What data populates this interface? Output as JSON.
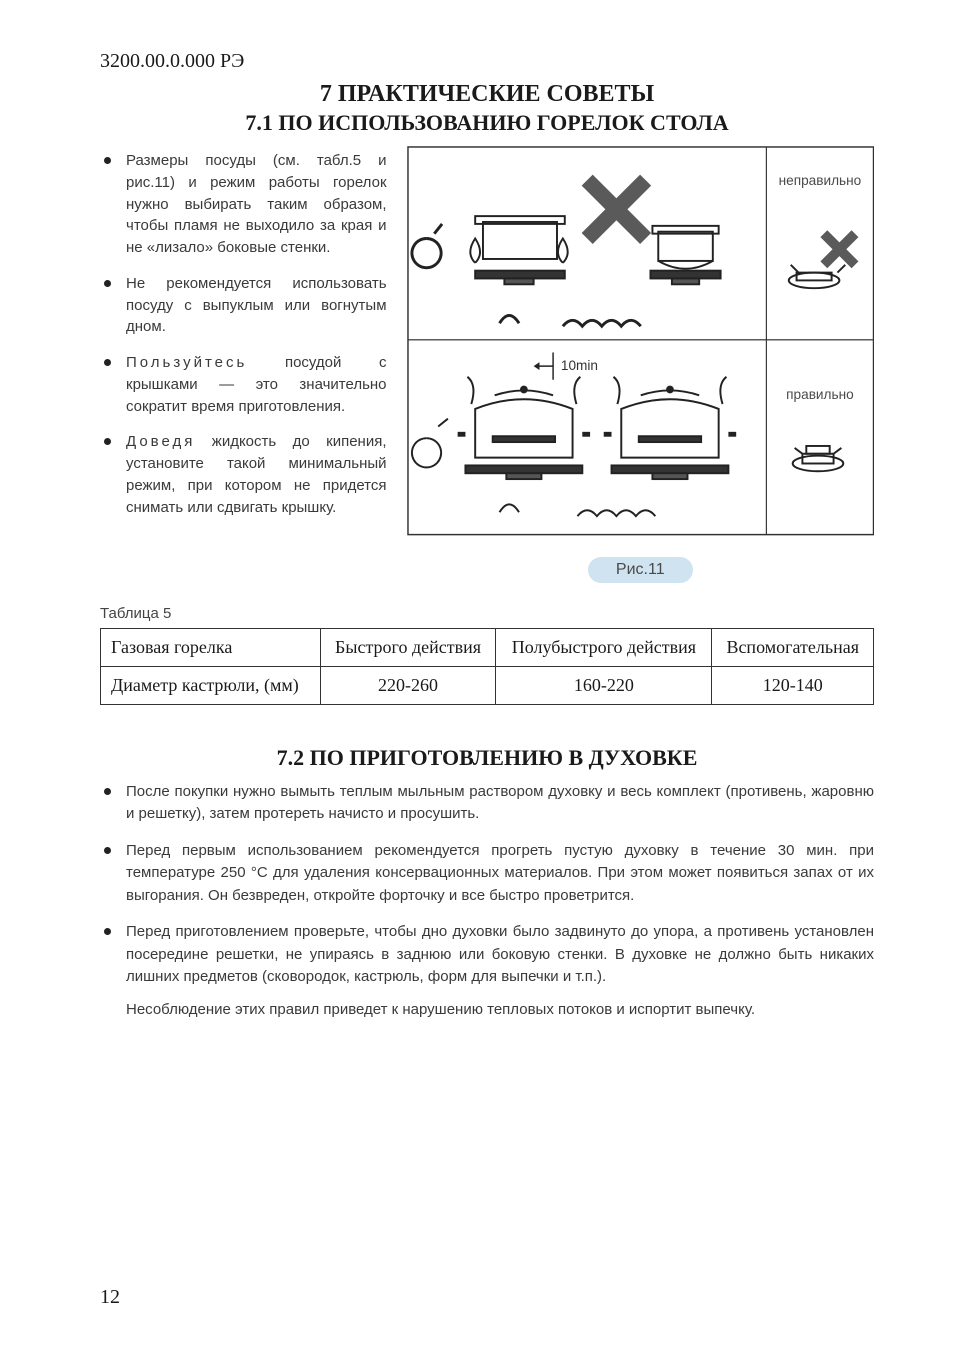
{
  "header": {
    "doc_code": "3200.00.0.000 РЭ"
  },
  "section7": {
    "title": "7 ПРАКТИЧЕСКИЕ СОВЕТЫ",
    "sub71_title": "7.1  ПО ИСПОЛЬЗОВАНИЮ ГОРЕЛОК СТОЛА",
    "bullets71": [
      "Размеры посуды (см. табл.5 и рис.11) и режим работы горелок нужно выбирать таким образом, чтобы пламя не выходило за края и не «лизало» боковые стенки.",
      "Не рекомендуется использовать посуду с выпуклым или вогнутым дном.",
      "Пользуйтесь посудой с крышками — это значительно сократит время приготовления.",
      "Доведя жидкость до кипения, установите такой минимальный режим, при котором не придется снимать или сдвигать крышку."
    ],
    "letterspace_items": [
      2,
      3
    ],
    "figure": {
      "caption": "Рис.11",
      "label_wrong": "неправильно",
      "label_right": "правильно",
      "annotation": "10min",
      "style": {
        "border_color": "#333333",
        "stroke": "#222222",
        "x_color": "#5a5a5a",
        "text_color": "#4a4a4a",
        "text_size": 14
      }
    },
    "table5": {
      "caption": "Таблица 5",
      "columns": [
        "Газовая горелка",
        "Быстрого действия",
        "Полубыстрого действия",
        "Вспомогательная"
      ],
      "rows": [
        [
          "Диаметр кастрюли, (мм)",
          "220-260",
          "160-220",
          "120-140"
        ]
      ],
      "style": {
        "border_color": "#333333",
        "font": "Times New Roman",
        "font_size": 18
      }
    },
    "sub72_title": "7.2 ПО ПРИГОТОВЛЕНИЮ В ДУХОВКЕ",
    "bullets72": [
      "После покупки нужно вымыть теплым мыльным раствором духовку и весь комплект (противень, жаровню и решетку), затем протереть начисто и просушить.",
      "Перед первым использованием рекомендуется прогреть пустую духовку в течение 30 мин. при температуре 250 °С для удаления консервационных материалов. При этом может появиться запах от их выгорания. Он безвреден, откройте форточку и все быстро проветрится.",
      "Перед приготовлением проверьте, чтобы дно духовки было задвинуто до упора, а противень установлен посередине решетки, не упираясь в заднюю или боковую стенки. В духовке не должно быть никаких лишних предметов (сковородок, кастрюль, форм для выпечки и т.п.)."
    ],
    "trailing72": "Несоблюдение этих правил приведет к нарушению тепловых потоков и испортит выпечку."
  },
  "page_number": "12"
}
